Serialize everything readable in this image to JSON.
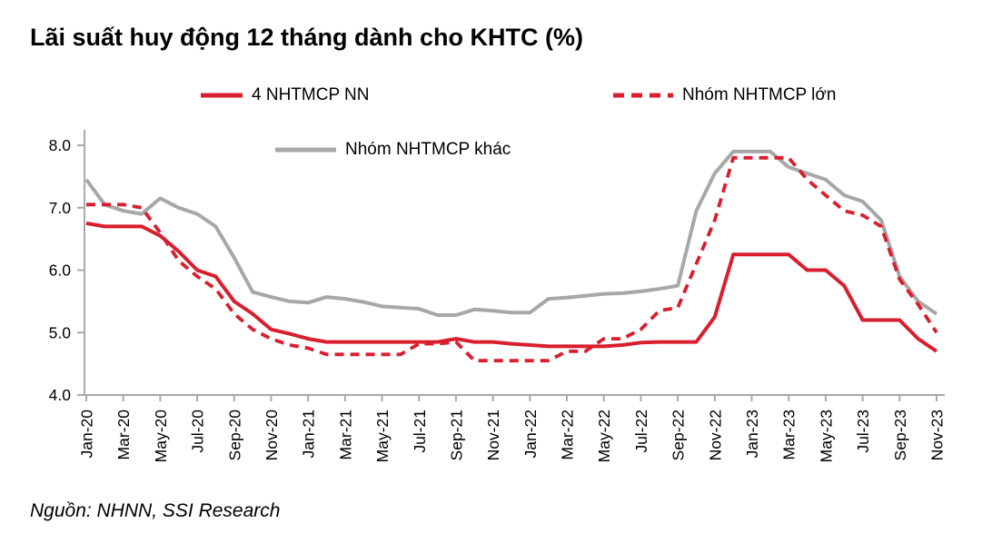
{
  "page": {
    "title": "Lãi suất huy động 12 tháng dành cho KHTC (%)",
    "source": "Nguồn: NHNN, SSI Research"
  },
  "colors": {
    "red": "#d91e2e",
    "gray": "#a7a7a7",
    "axis": "#a9a9a9",
    "text": "#000000"
  },
  "legend": {
    "items": [
      {
        "label": "4 NHTMCP NN",
        "style": "solid",
        "color": "red"
      },
      {
        "label": "Nhóm NHTMCP lớn",
        "style": "dashed",
        "color": "red"
      },
      {
        "label": "Nhóm NHTMCP khác",
        "style": "solid",
        "color": "gray"
      }
    ]
  },
  "chart_data": {
    "type": "line",
    "title": "Lãi suất huy động 12 tháng dành cho KHTC (%)",
    "x": [
      "Jan-20",
      "Feb-20",
      "Mar-20",
      "Apr-20",
      "May-20",
      "Jun-20",
      "Jul-20",
      "Aug-20",
      "Sep-20",
      "Oct-20",
      "Nov-20",
      "Dec-20",
      "Jan-21",
      "Feb-21",
      "Mar-21",
      "Apr-21",
      "May-21",
      "Jun-21",
      "Jul-21",
      "Aug-21",
      "Sep-21",
      "Oct-21",
      "Nov-21",
      "Dec-21",
      "Jan-22",
      "Feb-22",
      "Mar-22",
      "Apr-22",
      "May-22",
      "Jun-22",
      "Jul-22",
      "Aug-22",
      "Sep-22",
      "Oct-22",
      "Nov-22",
      "Dec-22",
      "Jan-23",
      "Feb-23",
      "Mar-23",
      "Apr-23",
      "May-23",
      "Jun-23",
      "Jul-23",
      "Aug-23",
      "Sep-23",
      "Oct-23",
      "Nov-23"
    ],
    "x_tick_step": 2,
    "ylim": [
      4.0,
      8.0
    ],
    "y_ticks": [
      8.0,
      7.0,
      6.0,
      5.0,
      4.0
    ],
    "y_tick_labels": [
      "8.0",
      "7.0",
      "6.0",
      "5.0",
      "4.0"
    ],
    "grid": false,
    "legend_position": "top",
    "series": [
      {
        "name": "4 NHTMCP NN",
        "style": "solid",
        "color": "red",
        "values": [
          6.75,
          6.7,
          6.7,
          6.7,
          6.55,
          6.3,
          6.0,
          5.9,
          5.5,
          5.3,
          5.05,
          4.98,
          4.9,
          4.85,
          4.85,
          4.85,
          4.85,
          4.85,
          4.85,
          4.85,
          4.9,
          4.85,
          4.85,
          4.82,
          4.8,
          4.78,
          4.78,
          4.78,
          4.78,
          4.8,
          4.84,
          4.85,
          4.85,
          4.85,
          5.25,
          6.25,
          6.25,
          6.25,
          6.25,
          6.0,
          6.0,
          5.75,
          5.2,
          5.2,
          5.2,
          4.9,
          4.7
        ]
      },
      {
        "name": "Nhóm NHTMCP lớn",
        "style": "dashed",
        "color": "red",
        "values": [
          7.05,
          7.05,
          7.05,
          7.0,
          6.6,
          6.15,
          5.9,
          5.7,
          5.3,
          5.05,
          4.9,
          4.8,
          4.75,
          4.65,
          4.65,
          4.65,
          4.65,
          4.65,
          4.82,
          4.82,
          4.85,
          4.55,
          4.55,
          4.55,
          4.55,
          4.55,
          4.7,
          4.7,
          4.9,
          4.9,
          5.05,
          5.35,
          5.4,
          6.1,
          6.8,
          7.8,
          7.8,
          7.8,
          7.8,
          7.45,
          7.2,
          6.95,
          6.88,
          6.7,
          5.85,
          5.45,
          5.0
        ]
      },
      {
        "name": "Nhóm NHTMCP khác",
        "style": "solid",
        "color": "gray",
        "values": [
          7.45,
          7.05,
          6.95,
          6.9,
          7.15,
          7.0,
          6.9,
          6.7,
          6.2,
          5.65,
          5.57,
          5.5,
          5.48,
          5.57,
          5.54,
          5.49,
          5.42,
          5.4,
          5.38,
          5.28,
          5.28,
          5.37,
          5.35,
          5.32,
          5.32,
          5.54,
          5.56,
          5.59,
          5.62,
          5.63,
          5.66,
          5.7,
          5.75,
          6.95,
          7.55,
          7.9,
          7.9,
          7.9,
          7.65,
          7.55,
          7.45,
          7.2,
          7.1,
          6.8,
          5.9,
          5.5,
          5.3
        ]
      }
    ]
  }
}
